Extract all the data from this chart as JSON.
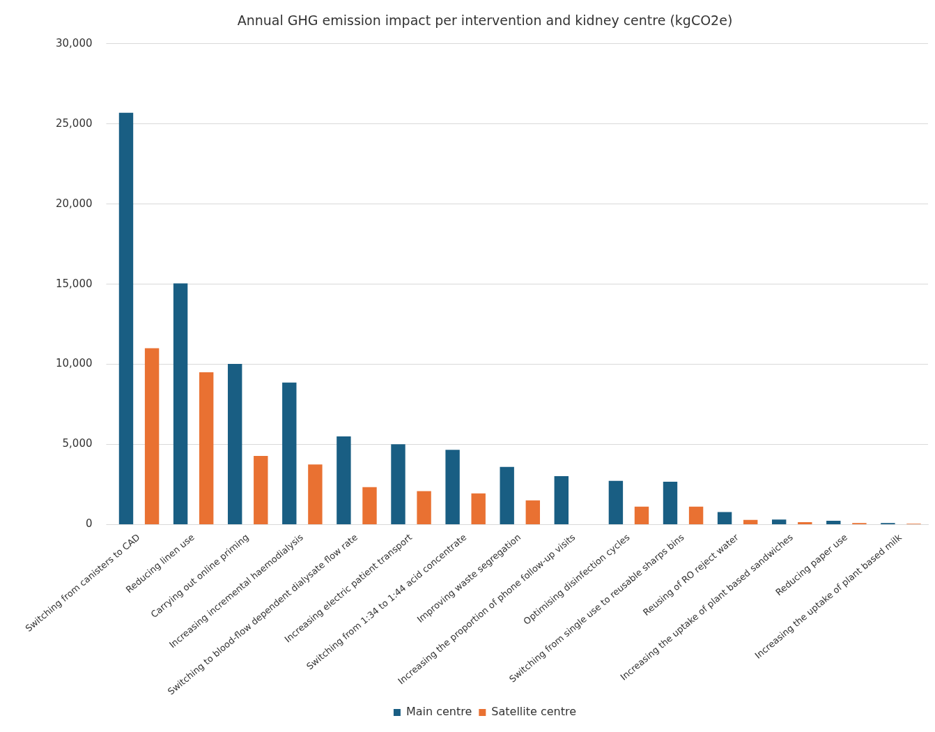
{
  "chart_data": {
    "type": "bar",
    "title": "Annual GHG emission impact per intervention and kidney centre (kgCO2e)",
    "categories": [
      "Switching from canisters to CAD",
      "Reducing linen use",
      "Carrying out online priming",
      "Increasing incremental haemodialysis",
      "Switching to blood-flow dependent dialysate flow rate",
      "Increasing electric patient transport",
      "Switching from 1:34 to 1:44 acid concentrate",
      "Improving waste segregation",
      "Increasing the proportion of phone follow-up visits",
      "Optimising disinfection cycles",
      "Switching from single use to reusable sharps bins",
      "Reusing of RO reject water",
      "Increasing the uptake of plant based sandwiches",
      "Reducing paper use",
      "Increasing the uptake of plant based milk"
    ],
    "series": [
      {
        "name": "Main centre",
        "color": "#195e83",
        "values": [
          25700,
          15050,
          10030,
          8860,
          5500,
          5010,
          4670,
          3600,
          3020,
          2730,
          2680,
          780,
          310,
          240,
          100
        ]
      },
      {
        "name": "Satellite centre",
        "color": "#e97132",
        "values": [
          11000,
          9500,
          4280,
          3750,
          2340,
          2090,
          1950,
          1510,
          null,
          1120,
          1120,
          290,
          150,
          100,
          50
        ]
      }
    ],
    "ylim": [
      0,
      30000
    ],
    "yticks": [
      0,
      {
        "value": 5000,
        "label": "5,000"
      },
      {
        "value": 10000,
        "label": "10,000"
      },
      {
        "value": 15000,
        "label": "15,000"
      },
      {
        "value": 20000,
        "label": "20,000"
      },
      {
        "value": 25000,
        "label": "25,000"
      },
      {
        "value": 30000,
        "label": "30,000"
      }
    ],
    "grid": "y",
    "legend": "bottom"
  }
}
